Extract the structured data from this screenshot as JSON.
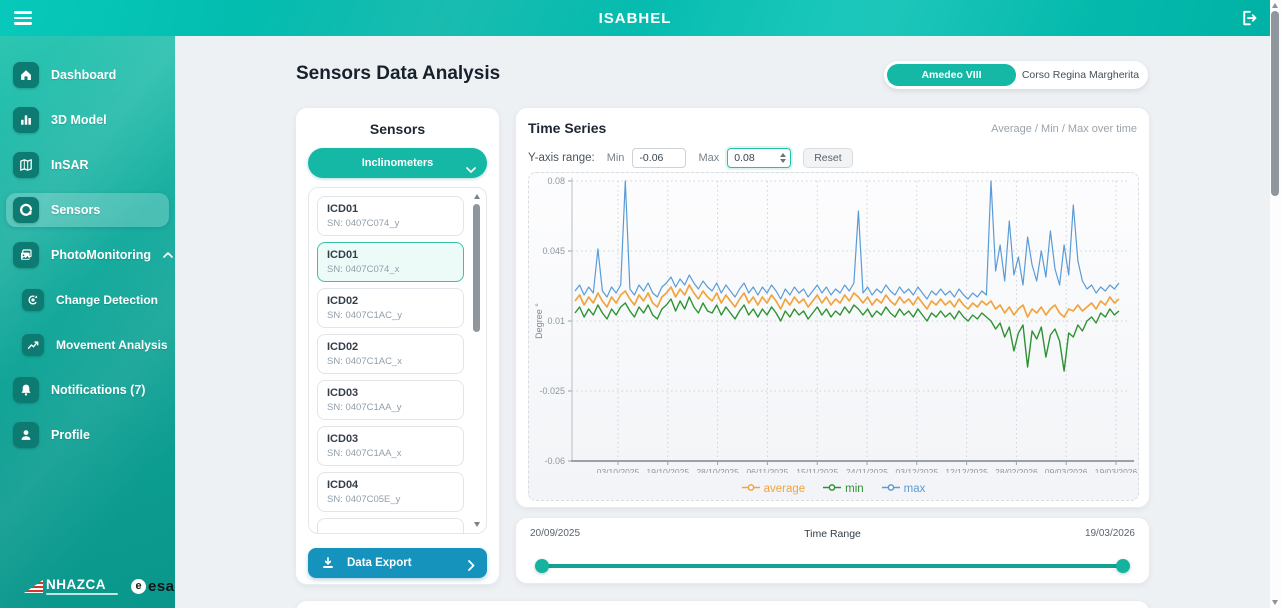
{
  "topbar": {
    "title": "ISABHEL"
  },
  "sidebar": {
    "items": [
      {
        "label": "Dashboard",
        "icon": "home-icon"
      },
      {
        "label": "3D Model",
        "icon": "bar-chart-icon"
      },
      {
        "label": "InSAR",
        "icon": "map-icon"
      },
      {
        "label": "Sensors",
        "icon": "sensors-icon",
        "active": true
      },
      {
        "label": "PhotoMonitoring",
        "icon": "photo-icon",
        "expandable": true
      },
      {
        "label": "Change Detection",
        "icon": "change-detection-icon",
        "sub": true
      },
      {
        "label": "Movement Analysis",
        "icon": "trend-up-icon",
        "sub": true
      },
      {
        "label": "Notifications (7)",
        "icon": "bell-icon"
      },
      {
        "label": "Profile",
        "icon": "person-icon"
      }
    ],
    "logos": {
      "nhazca": "NHAZCA",
      "esa": "esa"
    }
  },
  "page": {
    "title": "Sensors Data Analysis"
  },
  "site_toggle": {
    "options": [
      {
        "label": "Amedeo VIII",
        "active": true
      },
      {
        "label": "Corso Regina Margherita",
        "active": false
      }
    ]
  },
  "sensors_panel": {
    "title": "Sensors",
    "type_dropdown": "Inclinometers",
    "items": [
      {
        "name": "ICD01",
        "sn": "SN: 0407C074_y"
      },
      {
        "name": "ICD01",
        "sn": "SN: 0407C074_x",
        "selected": true
      },
      {
        "name": "ICD02",
        "sn": "SN: 0407C1AC_y"
      },
      {
        "name": "ICD02",
        "sn": "SN: 0407C1AC_x"
      },
      {
        "name": "ICD03",
        "sn": "SN: 0407C1AA_y"
      },
      {
        "name": "ICD03",
        "sn": "SN: 0407C1AA_x"
      },
      {
        "name": "ICD04",
        "sn": "SN: 0407C05E_y"
      },
      {
        "partial": true
      }
    ],
    "export_button": "Data Export"
  },
  "time_series": {
    "title": "Time Series",
    "subtitle": "Average / Min / Max over time",
    "y_axis_range_label": "Y-axis range:",
    "min_label": "Min",
    "min_value": "-0.06",
    "max_label": "Max",
    "max_value": "0.08",
    "reset_button": "Reset"
  },
  "chart_data": {
    "type": "line",
    "title": "Time Series",
    "ylabel": "Degree °",
    "ylim": [
      -0.06,
      0.08
    ],
    "y_ticks": [
      "0.08",
      "0.045",
      "0.01",
      "-0.025",
      "-0.06"
    ],
    "x_tick_labels": [
      "03/10/2025",
      "19/10/2025",
      "28/10/2025",
      "06/11/2025",
      "15/11/2025",
      "24/11/2025",
      "03/12/2025",
      "12/12/2025",
      "28/02/2026",
      "09/03/2026",
      "19/03/2026"
    ],
    "x_range": [
      "20/09/2025",
      "19/03/2026"
    ],
    "grid": "dotted",
    "legend_position": "bottom",
    "legend": [
      "average",
      "min",
      "max"
    ],
    "series": [
      {
        "name": "max",
        "color": "#5b9bd5",
        "values": [
          0.025,
          0.028,
          0.023,
          0.027,
          0.024,
          0.046,
          0.025,
          0.022,
          0.027,
          0.024,
          0.028,
          0.08,
          0.026,
          0.023,
          0.028,
          0.025,
          0.029,
          0.024,
          0.022,
          0.027,
          0.029,
          0.032,
          0.027,
          0.031,
          0.028,
          0.033,
          0.029,
          0.026,
          0.03,
          0.027,
          0.025,
          0.029,
          0.024,
          0.028,
          0.025,
          0.022,
          0.026,
          0.029,
          0.024,
          0.027,
          0.023,
          0.027,
          0.024,
          0.028,
          0.025,
          0.021,
          0.026,
          0.023,
          0.027,
          0.024,
          0.026,
          0.022,
          0.025,
          0.028,
          0.024,
          0.027,
          0.023,
          0.026,
          0.024,
          0.028,
          0.025,
          0.029,
          0.065,
          0.024,
          0.027,
          0.023,
          0.026,
          0.024,
          0.028,
          0.025,
          0.023,
          0.027,
          0.024,
          0.026,
          0.023,
          0.027,
          0.024,
          0.021,
          0.025,
          0.023,
          0.026,
          0.023,
          0.025,
          0.022,
          0.026,
          0.023,
          0.021,
          0.024,
          0.022,
          0.025,
          0.023,
          0.08,
          0.035,
          0.048,
          0.03,
          0.06,
          0.033,
          0.042,
          0.028,
          0.052,
          0.038,
          0.03,
          0.045,
          0.032,
          0.055,
          0.036,
          0.028,
          0.048,
          0.033,
          0.068,
          0.04,
          0.03,
          0.026,
          0.028,
          0.024,
          0.027,
          0.025,
          0.028,
          0.026,
          0.029
        ]
      },
      {
        "name": "average",
        "color": "#f2a33c",
        "values": [
          0.02,
          0.023,
          0.018,
          0.022,
          0.019,
          0.024,
          0.02,
          0.017,
          0.022,
          0.019,
          0.023,
          0.025,
          0.021,
          0.018,
          0.023,
          0.02,
          0.024,
          0.019,
          0.017,
          0.022,
          0.024,
          0.027,
          0.022,
          0.026,
          0.023,
          0.028,
          0.024,
          0.021,
          0.025,
          0.022,
          0.02,
          0.024,
          0.019,
          0.023,
          0.02,
          0.017,
          0.021,
          0.024,
          0.019,
          0.022,
          0.018,
          0.022,
          0.019,
          0.023,
          0.02,
          0.016,
          0.021,
          0.018,
          0.022,
          0.019,
          0.021,
          0.017,
          0.02,
          0.023,
          0.019,
          0.022,
          0.018,
          0.021,
          0.019,
          0.023,
          0.02,
          0.024,
          0.022,
          0.019,
          0.022,
          0.018,
          0.021,
          0.019,
          0.023,
          0.02,
          0.018,
          0.022,
          0.019,
          0.021,
          0.018,
          0.022,
          0.019,
          0.016,
          0.02,
          0.018,
          0.021,
          0.018,
          0.02,
          0.017,
          0.021,
          0.018,
          0.016,
          0.019,
          0.017,
          0.02,
          0.018,
          0.02,
          0.016,
          0.018,
          0.014,
          0.017,
          0.013,
          0.016,
          0.018,
          0.012,
          0.016,
          0.014,
          0.017,
          0.013,
          0.016,
          0.018,
          0.014,
          0.012,
          0.016,
          0.015,
          0.018,
          0.015,
          0.017,
          0.019,
          0.016,
          0.02,
          0.018,
          0.022,
          0.019,
          0.021
        ]
      },
      {
        "name": "min",
        "color": "#2e9233",
        "values": [
          0.014,
          0.017,
          0.012,
          0.016,
          0.013,
          0.018,
          0.014,
          0.011,
          0.016,
          0.013,
          0.017,
          0.019,
          0.015,
          0.012,
          0.017,
          0.014,
          0.018,
          0.013,
          0.011,
          0.016,
          0.018,
          0.021,
          0.015,
          0.02,
          0.016,
          0.022,
          0.017,
          0.014,
          0.019,
          0.015,
          0.014,
          0.018,
          0.013,
          0.017,
          0.014,
          0.011,
          0.015,
          0.018,
          0.013,
          0.016,
          0.012,
          0.016,
          0.013,
          0.017,
          0.014,
          0.01,
          0.015,
          0.012,
          0.016,
          0.013,
          0.015,
          0.011,
          0.014,
          0.017,
          0.013,
          0.016,
          0.012,
          0.015,
          0.013,
          0.017,
          0.014,
          0.018,
          0.016,
          0.013,
          0.016,
          0.012,
          0.015,
          0.013,
          0.017,
          0.014,
          0.012,
          0.016,
          0.013,
          0.015,
          0.012,
          0.016,
          0.013,
          0.01,
          0.014,
          0.012,
          0.015,
          0.012,
          0.014,
          0.011,
          0.015,
          0.012,
          0.01,
          0.013,
          0.011,
          0.014,
          0.012,
          0.01,
          0.006,
          0.009,
          0.002,
          0.007,
          -0.005,
          0.004,
          0.008,
          -0.013,
          0.005,
          0.001,
          0.007,
          -0.008,
          0.003,
          0.006,
          0.0,
          -0.015,
          0.004,
          0.002,
          0.008,
          0.005,
          0.01,
          0.012,
          0.009,
          0.014,
          0.012,
          0.016,
          0.013,
          0.015
        ]
      }
    ]
  },
  "time_range": {
    "start": "20/09/2025",
    "label": "Time Range",
    "end": "19/03/2026"
  }
}
